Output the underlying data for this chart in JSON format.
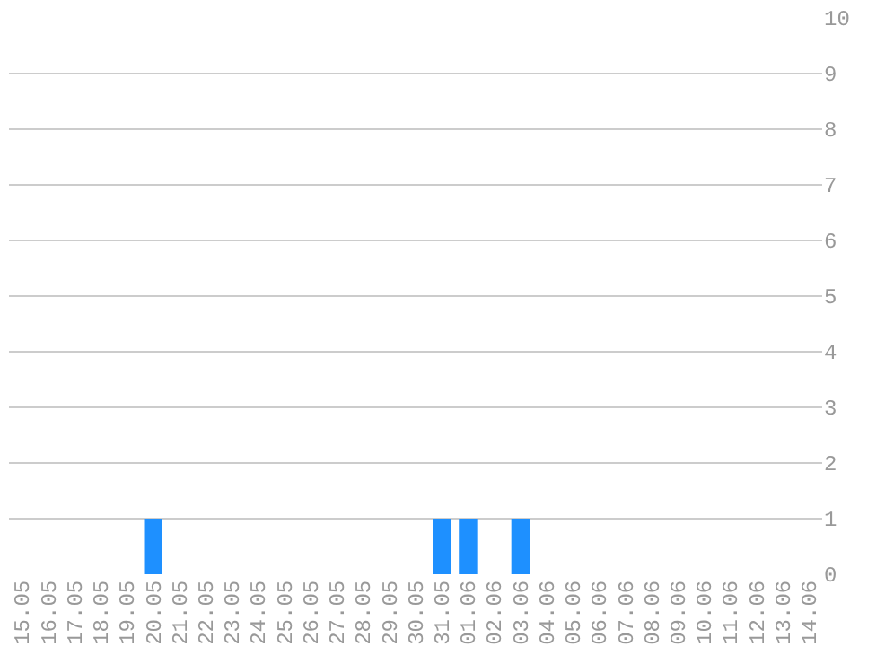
{
  "chart_data": {
    "type": "bar",
    "categories": [
      "15.05",
      "16.05",
      "17.05",
      "18.05",
      "19.05",
      "20.05",
      "21.05",
      "22.05",
      "23.05",
      "24.05",
      "25.05",
      "26.05",
      "27.05",
      "28.05",
      "29.05",
      "30.05",
      "31.05",
      "01.06",
      "02.06",
      "03.06",
      "04.06",
      "05.06",
      "06.06",
      "07.06",
      "08.06",
      "09.06",
      "10.06",
      "11.06",
      "12.06",
      "13.06",
      "14.06"
    ],
    "values": [
      0,
      0,
      0,
      0,
      0,
      1,
      0,
      0,
      0,
      0,
      0,
      0,
      0,
      0,
      0,
      0,
      1,
      1,
      0,
      1,
      0,
      0,
      0,
      0,
      0,
      0,
      0,
      0,
      0,
      0,
      0
    ],
    "color": "#1e90ff",
    "ylim": [
      0,
      10
    ],
    "yticks": [
      0,
      1,
      2,
      3,
      4,
      5,
      6,
      7,
      8,
      9,
      10
    ],
    "grid": "y",
    "legend": false
  }
}
